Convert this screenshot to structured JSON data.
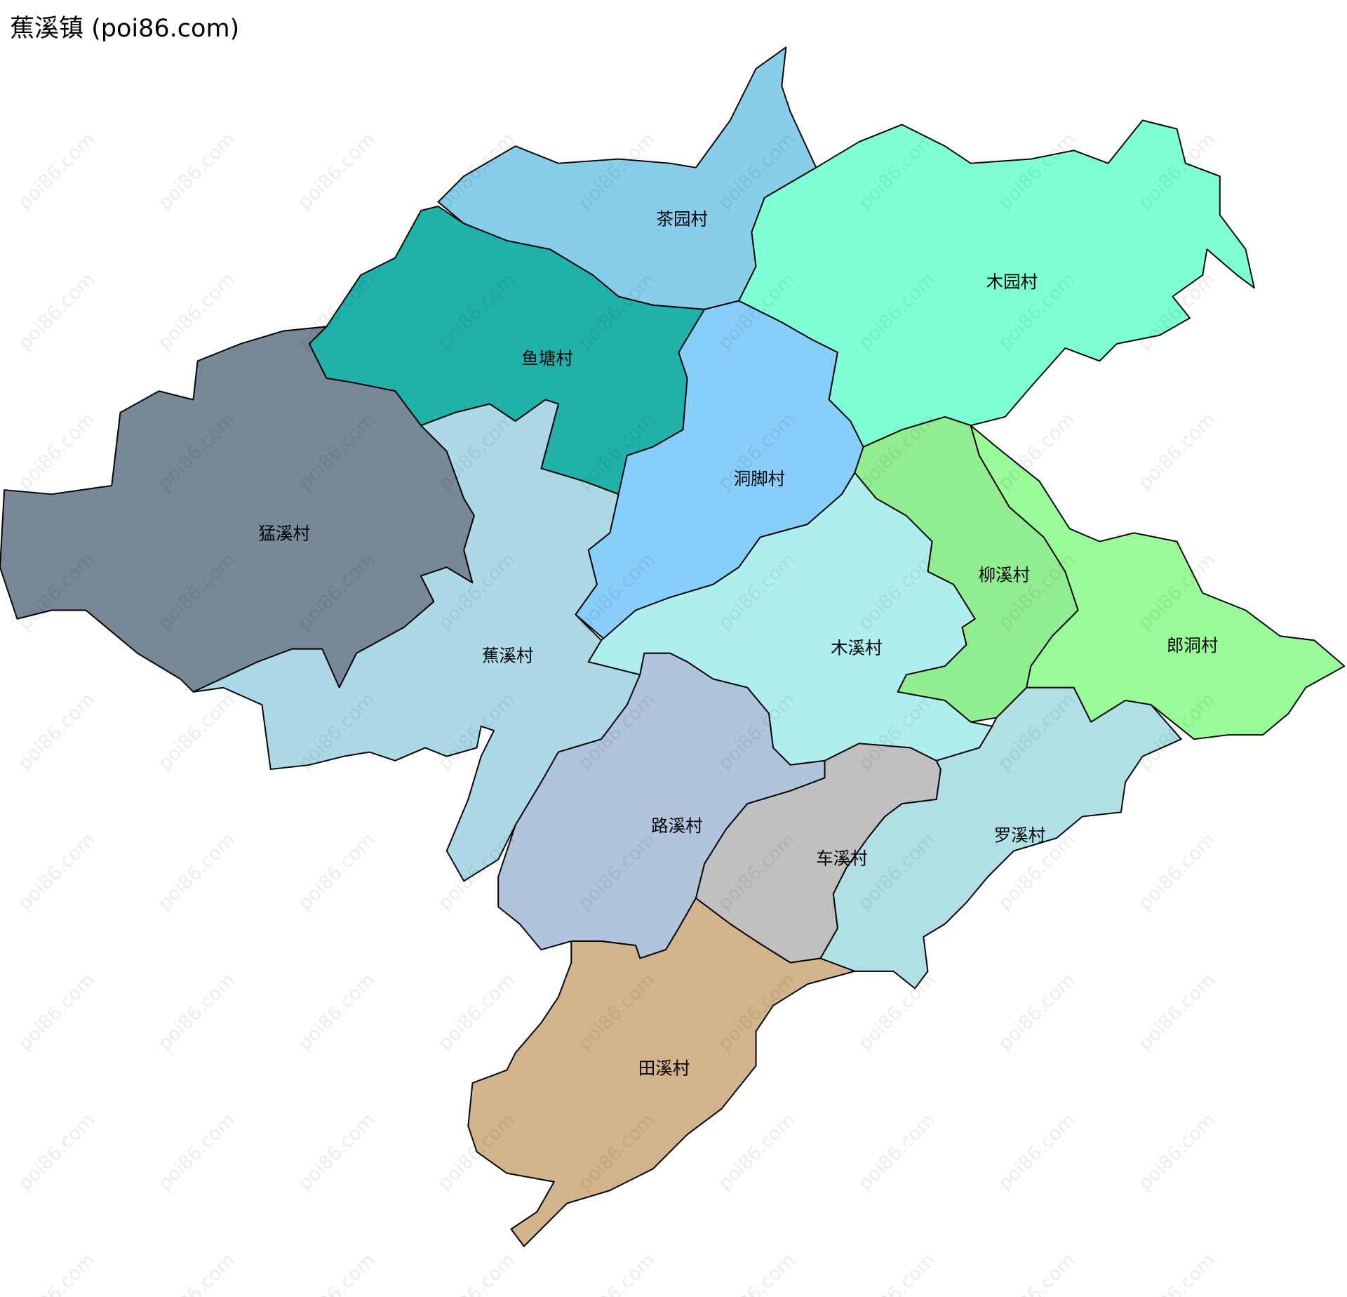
{
  "title": "蕉溪镇 (poi86.com)",
  "watermark": "poi86.com",
  "regions": [
    {
      "name": "茶园村",
      "color": "#87CEEB"
    },
    {
      "name": "木园村",
      "color": "#7FFFD4"
    },
    {
      "name": "鱼塘村",
      "color": "#20B2AA"
    },
    {
      "name": "猛溪村",
      "color": "#778899"
    },
    {
      "name": "蕉溪村",
      "color": "#ADD8E6"
    },
    {
      "name": "洞脚村",
      "color": "#87CEFA"
    },
    {
      "name": "柳溪村",
      "color": "#90EE90"
    },
    {
      "name": "郎洞村",
      "color": "#98FB98"
    },
    {
      "name": "木溪村",
      "color": "#AFEEEE"
    },
    {
      "name": "罗溪村",
      "color": "#B0E0E6"
    },
    {
      "name": "车溪村",
      "color": "#C0C0C0"
    },
    {
      "name": "路溪村",
      "color": "#B0C4DE"
    },
    {
      "name": "田溪村",
      "color": "#D2B48C"
    }
  ]
}
